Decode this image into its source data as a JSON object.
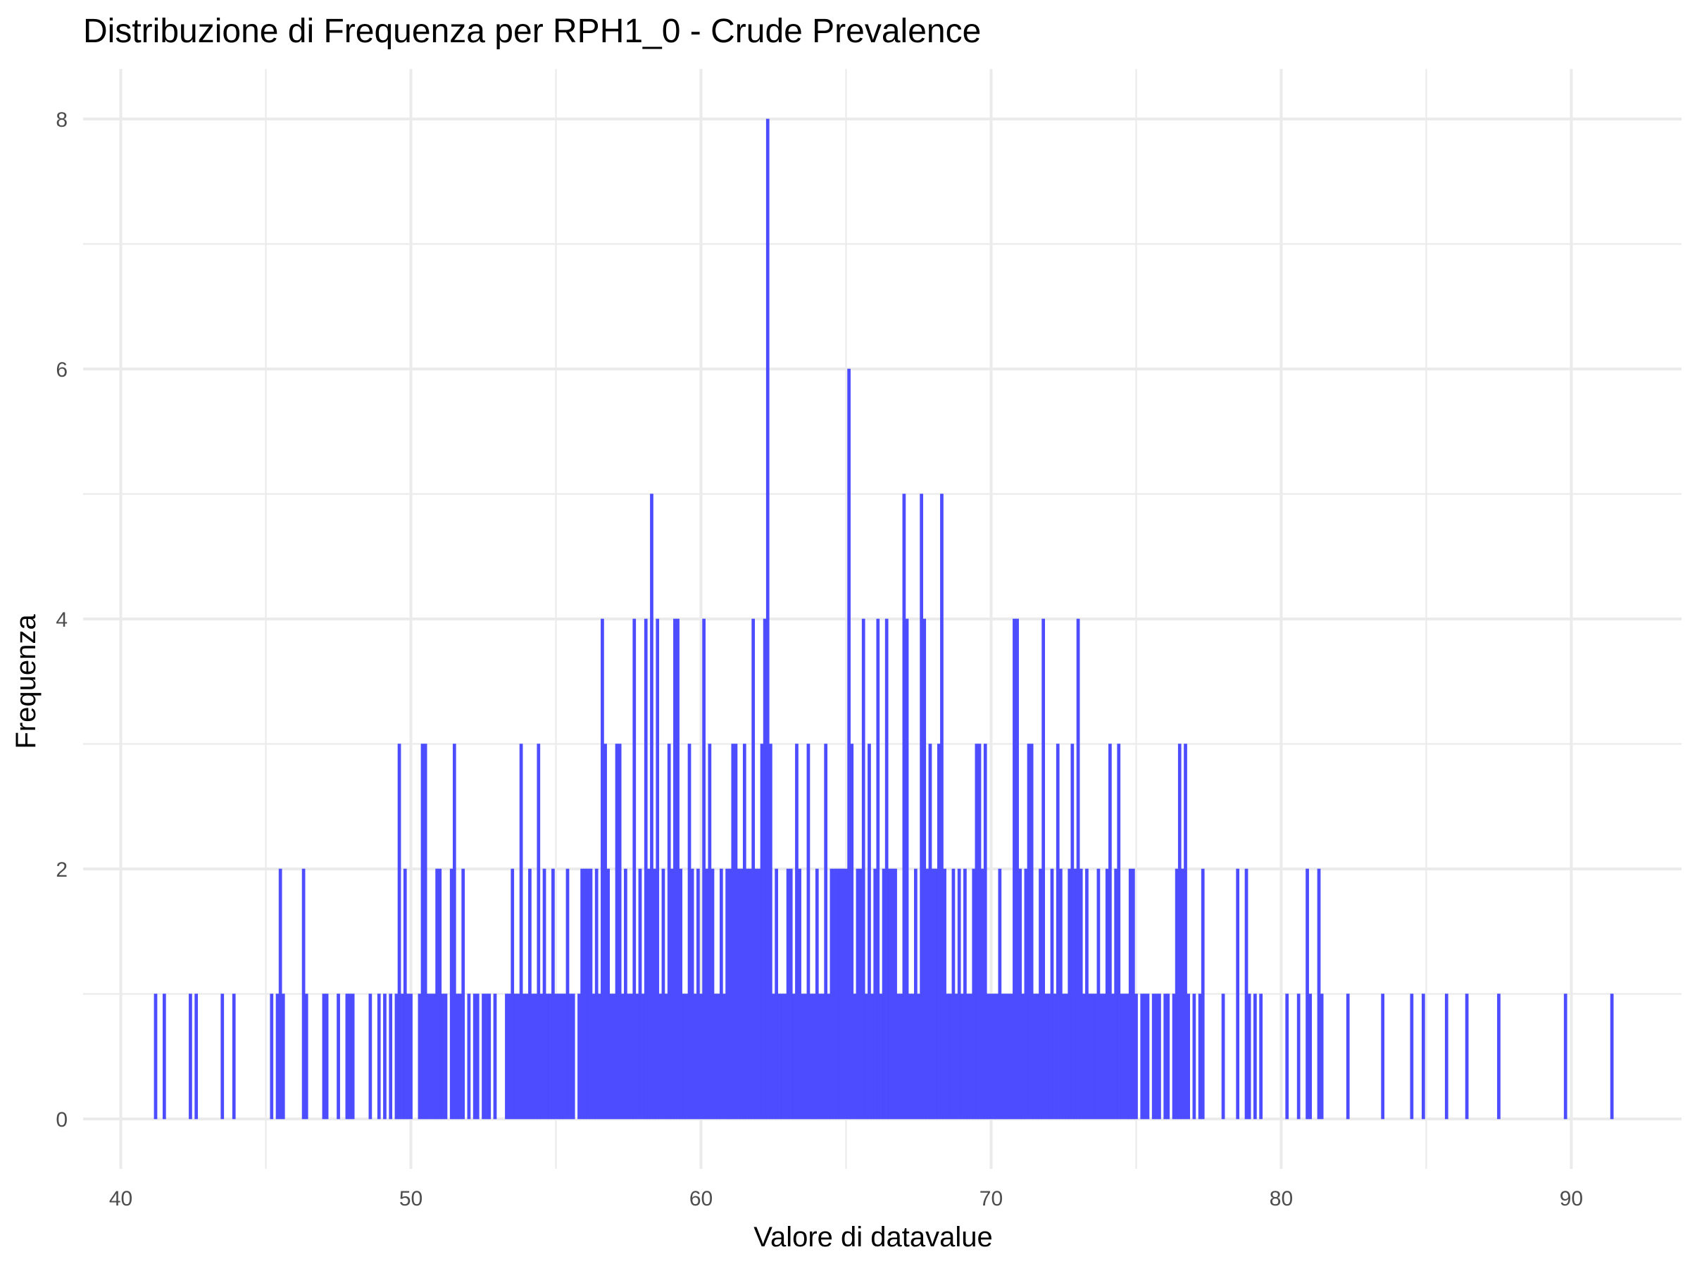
{
  "chart_data": {
    "type": "bar",
    "title": "Distribuzione di Frequenza per RPH1_0 - Crude Prevalence",
    "xlabel": "Valore di datavalue",
    "ylabel": "Frequenza",
    "xlim": [
      38.7,
      93.8
    ],
    "ylim": [
      -0.4,
      8.4
    ],
    "x_ticks": [
      40,
      50,
      60,
      70,
      80,
      90
    ],
    "y_ticks": [
      0,
      2,
      4,
      6,
      8
    ],
    "grid": true,
    "legend": "none",
    "bar_color": "#4d4dff",
    "bar_width": 0.1,
    "bars": [
      [
        41.2,
        1
      ],
      [
        41.5,
        1
      ],
      [
        42.4,
        1
      ],
      [
        42.6,
        1
      ],
      [
        43.5,
        1
      ],
      [
        43.9,
        1
      ],
      [
        45.2,
        1
      ],
      [
        45.4,
        1
      ],
      [
        45.5,
        2
      ],
      [
        45.6,
        1
      ],
      [
        46.3,
        2
      ],
      [
        46.4,
        1
      ],
      [
        47.0,
        1
      ],
      [
        47.1,
        1
      ],
      [
        47.5,
        1
      ],
      [
        47.8,
        1
      ],
      [
        47.9,
        1
      ],
      [
        48.0,
        1
      ],
      [
        48.6,
        1
      ],
      [
        48.9,
        1
      ],
      [
        49.1,
        1
      ],
      [
        49.3,
        1
      ],
      [
        49.5,
        1
      ],
      [
        49.6,
        3
      ],
      [
        49.7,
        1
      ],
      [
        49.8,
        2
      ],
      [
        49.9,
        1
      ],
      [
        50.0,
        1
      ],
      [
        50.3,
        1
      ],
      [
        50.4,
        3
      ],
      [
        50.5,
        3
      ],
      [
        50.6,
        1
      ],
      [
        50.7,
        1
      ],
      [
        50.8,
        1
      ],
      [
        50.9,
        2
      ],
      [
        51.0,
        2
      ],
      [
        51.1,
        1
      ],
      [
        51.2,
        1
      ],
      [
        51.4,
        2
      ],
      [
        51.5,
        3
      ],
      [
        51.6,
        1
      ],
      [
        51.7,
        1
      ],
      [
        51.8,
        2
      ],
      [
        52.0,
        1
      ],
      [
        52.2,
        1
      ],
      [
        52.3,
        1
      ],
      [
        52.5,
        1
      ],
      [
        52.6,
        1
      ],
      [
        52.7,
        1
      ],
      [
        52.9,
        1
      ],
      [
        53.3,
        1
      ],
      [
        53.4,
        1
      ],
      [
        53.5,
        2
      ],
      [
        53.6,
        1
      ],
      [
        53.7,
        1
      ],
      [
        53.8,
        3
      ],
      [
        53.9,
        1
      ],
      [
        54.0,
        1
      ],
      [
        54.1,
        2
      ],
      [
        54.2,
        1
      ],
      [
        54.3,
        1
      ],
      [
        54.4,
        3
      ],
      [
        54.5,
        1
      ],
      [
        54.6,
        2
      ],
      [
        54.7,
        1
      ],
      [
        54.8,
        1
      ],
      [
        54.9,
        2
      ],
      [
        55.0,
        1
      ],
      [
        55.1,
        1
      ],
      [
        55.2,
        1
      ],
      [
        55.3,
        1
      ],
      [
        55.4,
        2
      ],
      [
        55.5,
        1
      ],
      [
        55.6,
        1
      ],
      [
        55.8,
        1
      ],
      [
        55.9,
        2
      ],
      [
        56.0,
        2
      ],
      [
        56.1,
        2
      ],
      [
        56.2,
        2
      ],
      [
        56.3,
        1
      ],
      [
        56.4,
        2
      ],
      [
        56.5,
        1
      ],
      [
        56.6,
        4
      ],
      [
        56.7,
        3
      ],
      [
        56.8,
        2
      ],
      [
        56.9,
        1
      ],
      [
        57.0,
        1
      ],
      [
        57.1,
        3
      ],
      [
        57.2,
        3
      ],
      [
        57.3,
        1
      ],
      [
        57.4,
        2
      ],
      [
        57.5,
        1
      ],
      [
        57.6,
        1
      ],
      [
        57.7,
        4
      ],
      [
        57.8,
        1
      ],
      [
        57.9,
        2
      ],
      [
        58.0,
        1
      ],
      [
        58.1,
        4
      ],
      [
        58.2,
        2
      ],
      [
        58.3,
        5
      ],
      [
        58.4,
        2
      ],
      [
        58.5,
        4
      ],
      [
        58.6,
        1
      ],
      [
        58.7,
        2
      ],
      [
        58.8,
        1
      ],
      [
        58.9,
        3
      ],
      [
        59.0,
        2
      ],
      [
        59.1,
        4
      ],
      [
        59.2,
        4
      ],
      [
        59.3,
        2
      ],
      [
        59.4,
        1
      ],
      [
        59.5,
        1
      ],
      [
        59.6,
        3
      ],
      [
        59.7,
        2
      ],
      [
        59.8,
        1
      ],
      [
        59.9,
        2
      ],
      [
        60.0,
        1
      ],
      [
        60.1,
        4
      ],
      [
        60.2,
        2
      ],
      [
        60.3,
        3
      ],
      [
        60.4,
        2
      ],
      [
        60.5,
        1
      ],
      [
        60.6,
        1
      ],
      [
        60.7,
        2
      ],
      [
        60.8,
        1
      ],
      [
        60.9,
        2
      ],
      [
        61.0,
        2
      ],
      [
        61.1,
        3
      ],
      [
        61.2,
        3
      ],
      [
        61.3,
        2
      ],
      [
        61.4,
        2
      ],
      [
        61.5,
        3
      ],
      [
        61.6,
        2
      ],
      [
        61.7,
        2
      ],
      [
        61.8,
        4
      ],
      [
        61.9,
        2
      ],
      [
        62.0,
        2
      ],
      [
        62.1,
        3
      ],
      [
        62.2,
        4
      ],
      [
        62.3,
        8
      ],
      [
        62.4,
        3
      ],
      [
        62.5,
        1
      ],
      [
        62.6,
        2
      ],
      [
        62.7,
        1
      ],
      [
        62.8,
        1
      ],
      [
        62.9,
        1
      ],
      [
        63.0,
        2
      ],
      [
        63.1,
        2
      ],
      [
        63.2,
        1
      ],
      [
        63.3,
        3
      ],
      [
        63.4,
        2
      ],
      [
        63.5,
        1
      ],
      [
        63.6,
        1
      ],
      [
        63.7,
        3
      ],
      [
        63.8,
        1
      ],
      [
        63.9,
        1
      ],
      [
        64.0,
        2
      ],
      [
        64.1,
        1
      ],
      [
        64.2,
        1
      ],
      [
        64.3,
        3
      ],
      [
        64.4,
        1
      ],
      [
        64.5,
        2
      ],
      [
        64.6,
        2
      ],
      [
        64.7,
        2
      ],
      [
        64.8,
        2
      ],
      [
        64.9,
        2
      ],
      [
        65.0,
        2
      ],
      [
        65.1,
        6
      ],
      [
        65.2,
        3
      ],
      [
        65.3,
        1
      ],
      [
        65.4,
        2
      ],
      [
        65.5,
        2
      ],
      [
        65.6,
        4
      ],
      [
        65.7,
        1
      ],
      [
        65.8,
        3
      ],
      [
        65.9,
        1
      ],
      [
        66.0,
        2
      ],
      [
        66.1,
        4
      ],
      [
        66.2,
        1
      ],
      [
        66.3,
        2
      ],
      [
        66.4,
        4
      ],
      [
        66.5,
        2
      ],
      [
        66.6,
        2
      ],
      [
        66.7,
        2
      ],
      [
        66.8,
        1
      ],
      [
        66.9,
        1
      ],
      [
        67.0,
        5
      ],
      [
        67.1,
        4
      ],
      [
        67.2,
        1
      ],
      [
        67.3,
        1
      ],
      [
        67.4,
        2
      ],
      [
        67.5,
        1
      ],
      [
        67.6,
        5
      ],
      [
        67.7,
        4
      ],
      [
        67.8,
        2
      ],
      [
        67.9,
        3
      ],
      [
        68.0,
        2
      ],
      [
        68.1,
        2
      ],
      [
        68.2,
        3
      ],
      [
        68.3,
        5
      ],
      [
        68.4,
        2
      ],
      [
        68.5,
        1
      ],
      [
        68.6,
        1
      ],
      [
        68.7,
        2
      ],
      [
        68.8,
        1
      ],
      [
        68.9,
        2
      ],
      [
        69.0,
        1
      ],
      [
        69.1,
        2
      ],
      [
        69.2,
        1
      ],
      [
        69.3,
        1
      ],
      [
        69.4,
        2
      ],
      [
        69.5,
        3
      ],
      [
        69.6,
        3
      ],
      [
        69.7,
        2
      ],
      [
        69.8,
        3
      ],
      [
        69.9,
        1
      ],
      [
        70.0,
        1
      ],
      [
        70.1,
        1
      ],
      [
        70.2,
        1
      ],
      [
        70.3,
        2
      ],
      [
        70.4,
        1
      ],
      [
        70.5,
        1
      ],
      [
        70.6,
        1
      ],
      [
        70.7,
        1
      ],
      [
        70.8,
        4
      ],
      [
        70.9,
        4
      ],
      [
        71.0,
        2
      ],
      [
        71.1,
        1
      ],
      [
        71.2,
        2
      ],
      [
        71.3,
        3
      ],
      [
        71.4,
        3
      ],
      [
        71.5,
        1
      ],
      [
        71.6,
        1
      ],
      [
        71.7,
        2
      ],
      [
        71.8,
        4
      ],
      [
        71.9,
        1
      ],
      [
        72.0,
        1
      ],
      [
        72.1,
        2
      ],
      [
        72.2,
        1
      ],
      [
        72.3,
        3
      ],
      [
        72.4,
        2
      ],
      [
        72.5,
        1
      ],
      [
        72.6,
        1
      ],
      [
        72.7,
        2
      ],
      [
        72.8,
        3
      ],
      [
        72.9,
        2
      ],
      [
        73.0,
        4
      ],
      [
        73.1,
        2
      ],
      [
        73.2,
        1
      ],
      [
        73.3,
        2
      ],
      [
        73.4,
        1
      ],
      [
        73.5,
        1
      ],
      [
        73.6,
        1
      ],
      [
        73.7,
        2
      ],
      [
        73.8,
        1
      ],
      [
        73.9,
        1
      ],
      [
        74.0,
        2
      ],
      [
        74.1,
        3
      ],
      [
        74.2,
        1
      ],
      [
        74.3,
        2
      ],
      [
        74.4,
        3
      ],
      [
        74.5,
        1
      ],
      [
        74.6,
        1
      ],
      [
        74.7,
        1
      ],
      [
        74.8,
        2
      ],
      [
        74.9,
        2
      ],
      [
        75.0,
        1
      ],
      [
        75.2,
        1
      ],
      [
        75.3,
        1
      ],
      [
        75.4,
        1
      ],
      [
        75.6,
        1
      ],
      [
        75.7,
        1
      ],
      [
        75.8,
        1
      ],
      [
        76.0,
        1
      ],
      [
        76.1,
        1
      ],
      [
        76.3,
        1
      ],
      [
        76.4,
        2
      ],
      [
        76.5,
        3
      ],
      [
        76.6,
        2
      ],
      [
        76.7,
        3
      ],
      [
        76.8,
        1
      ],
      [
        77.0,
        1
      ],
      [
        77.2,
        1
      ],
      [
        77.3,
        2
      ],
      [
        78.0,
        1
      ],
      [
        78.5,
        2
      ],
      [
        78.8,
        2
      ],
      [
        78.9,
        1
      ],
      [
        79.1,
        1
      ],
      [
        79.3,
        1
      ],
      [
        80.2,
        1
      ],
      [
        80.6,
        1
      ],
      [
        80.9,
        2
      ],
      [
        81.0,
        1
      ],
      [
        81.3,
        2
      ],
      [
        81.4,
        1
      ],
      [
        82.3,
        1
      ],
      [
        83.5,
        1
      ],
      [
        84.5,
        1
      ],
      [
        84.9,
        1
      ],
      [
        85.7,
        1
      ],
      [
        86.4,
        1
      ],
      [
        87.5,
        1
      ],
      [
        89.8,
        1
      ],
      [
        91.4,
        1
      ]
    ]
  }
}
